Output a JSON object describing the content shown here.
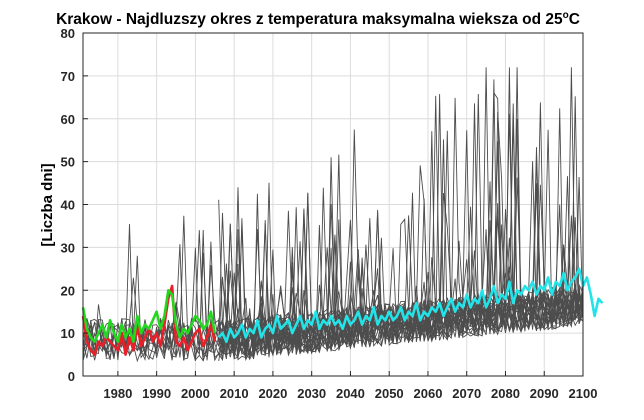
{
  "chart_data": {
    "type": "line",
    "title_main": "Krakow - Najdluzszy okres z temperatura maksymalna wieksza od 25",
    "title_unit_sup": "o",
    "title_unit": "C",
    "xlabel": "",
    "ylabel": "[Liczba dni]",
    "xlim": [
      1971,
      2100
    ],
    "ylim": [
      0,
      80
    ],
    "x_ticks": [
      1980,
      1990,
      2000,
      2010,
      2020,
      2030,
      2040,
      2050,
      2060,
      2070,
      2080,
      2090,
      2100
    ],
    "y_ticks": [
      0,
      10,
      20,
      30,
      40,
      50,
      60,
      70,
      80
    ],
    "grid": true,
    "legend": "none",
    "ensemble_color": "#4d4d4d",
    "ensemble_note": "many gray model realizations 1971-2100",
    "series": [
      {
        "color": "#e8202a",
        "x_start": 1971,
        "values": [
          14,
          8,
          6,
          5,
          8,
          7,
          9,
          8,
          7,
          6,
          10,
          5,
          9,
          6,
          12,
          7,
          9,
          11,
          8,
          10,
          7,
          12,
          18,
          21,
          8,
          7,
          9,
          6,
          8,
          10,
          11,
          7,
          9,
          12,
          8
        ]
      },
      {
        "color": "#22d81e",
        "x_start": 1971,
        "values": [
          16,
          11,
          9,
          8,
          10,
          12,
          9,
          13,
          10,
          8,
          12,
          9,
          11,
          8,
          14,
          10,
          12,
          11,
          13,
          15,
          11,
          14,
          20,
          19,
          12,
          9,
          11,
          10,
          12,
          14,
          13,
          11,
          12,
          15,
          10
        ]
      },
      {
        "color": "#22e3e8",
        "x_start": 2006,
        "values": [
          9,
          10,
          8,
          11,
          9,
          10,
          12,
          9,
          11,
          10,
          13,
          9,
          11,
          12,
          10,
          14,
          11,
          12,
          13,
          10,
          12,
          14,
          11,
          13,
          12,
          15,
          11,
          13,
          12,
          14,
          12,
          13,
          11,
          14,
          12,
          13,
          15,
          12,
          14,
          13,
          16,
          12,
          14,
          13,
          15,
          13,
          14,
          16,
          13,
          15,
          14,
          17,
          13,
          15,
          14,
          16,
          15,
          17,
          14,
          16,
          18,
          15,
          17,
          16,
          19,
          16,
          18,
          17,
          20,
          16,
          18,
          21,
          17,
          19,
          18,
          22,
          17,
          20,
          19,
          21,
          20,
          22,
          19,
          21,
          20,
          23,
          19,
          22,
          21,
          24,
          20,
          22,
          23,
          25,
          21,
          23,
          19,
          14,
          18,
          17
        ]
      }
    ]
  }
}
